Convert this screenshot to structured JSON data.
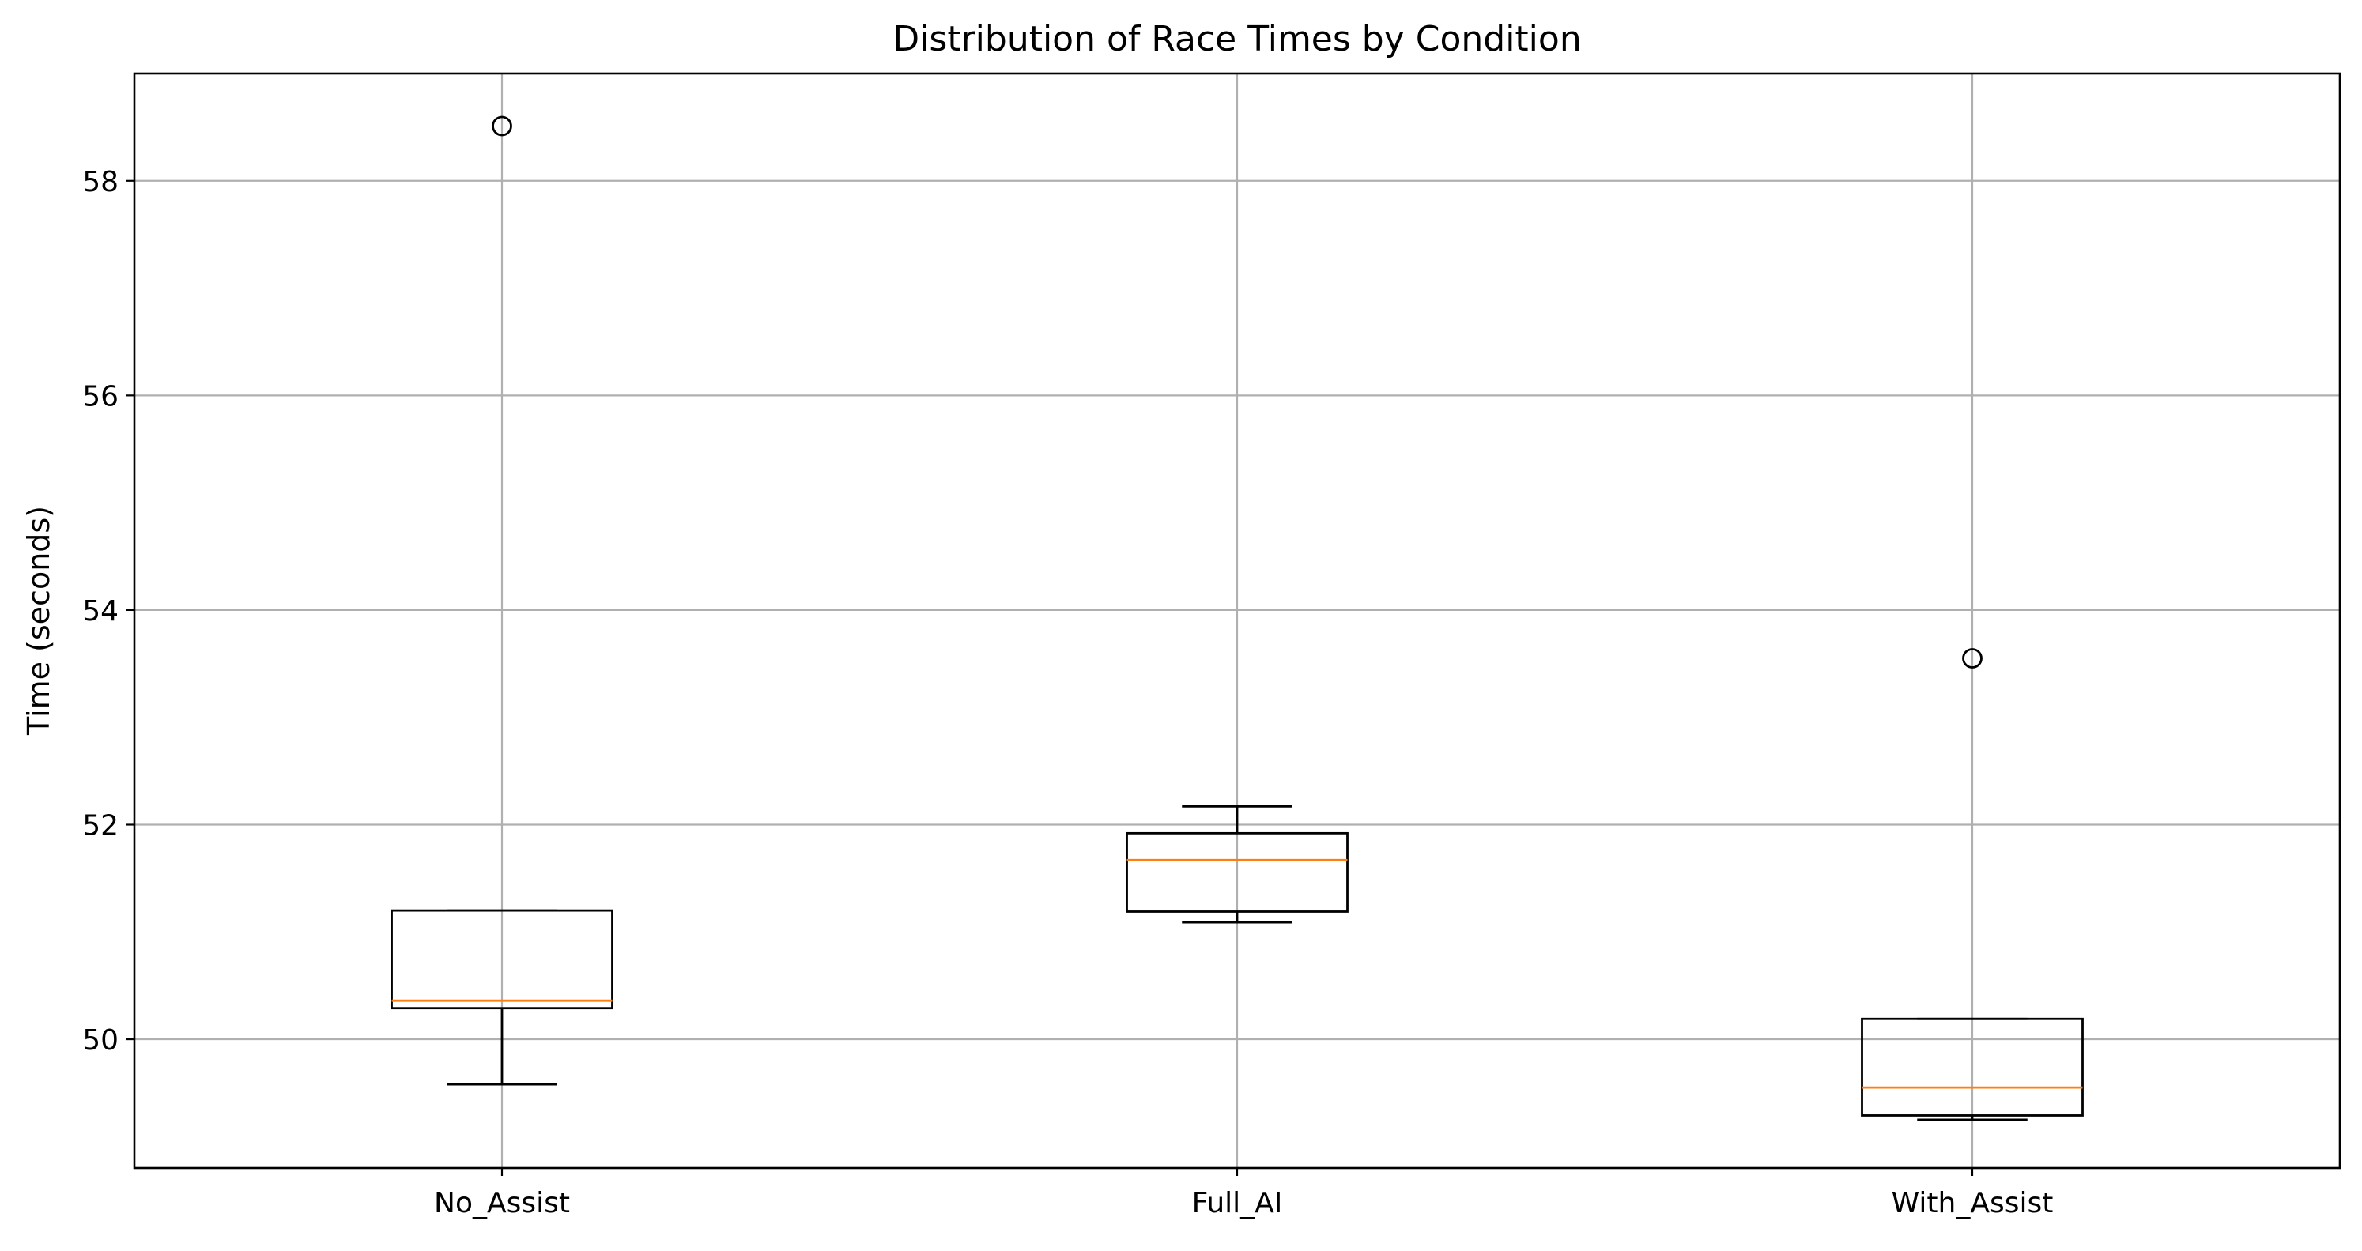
{
  "chart_data": {
    "type": "box",
    "title": "Distribution of Race Times by Condition",
    "xlabel": "",
    "ylabel": "Time (seconds)",
    "ylim": [
      48.8,
      59.0
    ],
    "yticks": [
      50,
      52,
      54,
      56,
      58
    ],
    "grid": true,
    "legend": "none",
    "categories": [
      "No_Assist",
      "Full_AI",
      "With_Assist"
    ],
    "boxes": [
      {
        "category": "No_Assist",
        "whisker_low": 49.58,
        "q1": 50.29,
        "median": 50.36,
        "q3": 51.2,
        "whisker_high": 51.2,
        "outliers": [
          58.51
        ]
      },
      {
        "category": "Full_AI",
        "whisker_low": 51.09,
        "q1": 51.19,
        "median": 51.67,
        "q3": 51.92,
        "whisker_high": 52.17,
        "outliers": []
      },
      {
        "category": "With_Assist",
        "whisker_low": 49.25,
        "q1": 49.29,
        "median": 49.55,
        "q3": 50.19,
        "whisker_high": 50.19,
        "outliers": [
          53.55
        ]
      }
    ],
    "colors": {
      "box": "#000000",
      "median": "#ff7f0e",
      "grid": "#b0b0b0",
      "outlier": "#000000"
    }
  }
}
